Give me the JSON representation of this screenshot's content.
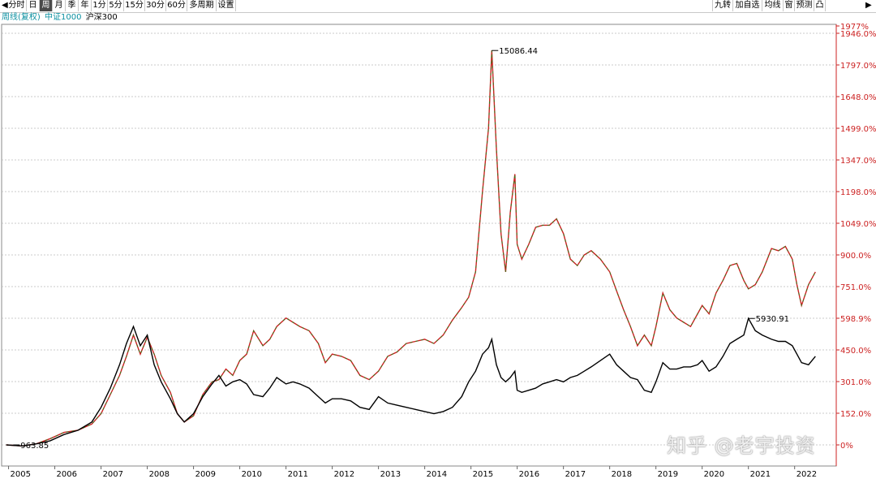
{
  "toolbar": {
    "left": [
      {
        "label": "分时",
        "w": 0
      },
      {
        "label": "日"
      },
      {
        "label": "周",
        "active": true
      },
      {
        "label": "月"
      },
      {
        "label": "季"
      },
      {
        "label": "年"
      },
      {
        "label": "1分"
      },
      {
        "label": "5分"
      },
      {
        "label": "15分"
      },
      {
        "label": "30分"
      },
      {
        "label": "60分"
      },
      {
        "label": "多周期"
      },
      {
        "label": "设置"
      }
    ],
    "right": [
      {
        "label": "九转"
      },
      {
        "label": "加自选"
      },
      {
        "label": "均线"
      },
      {
        "label": "窗"
      },
      {
        "label": "预测"
      },
      {
        "label": "凸"
      }
    ]
  },
  "legend": [
    "周线(复权)",
    "中证1000",
    "沪深300"
  ],
  "watermark": "知乎 @老宇投资",
  "chart_data": {
    "type": "line",
    "x_ticks": [
      "2005",
      "2006",
      "2007",
      "2008",
      "2009",
      "2010",
      "2011",
      "2012",
      "2013",
      "2014",
      "2015",
      "2016",
      "2017",
      "2018",
      "2019",
      "2020",
      "2021",
      "2022"
    ],
    "y_ticks": [
      "1977%",
      "1946.0%",
      "1797.0%",
      "1648.0%",
      "1499.0%",
      "1347.0%",
      "1198.0%",
      "1049.0%",
      "900.0%",
      "751.0%",
      "598.9%",
      "450.0%",
      "301.0%",
      "152.0%",
      "0%"
    ],
    "y_unit": "percent",
    "ylim": [
      0,
      1977
    ],
    "annotations": [
      {
        "text": "15086.44",
        "x": 2015.45,
        "y": 1865
      },
      {
        "text": "5930.91",
        "x": 2021.0,
        "y": 598
      },
      {
        "text": "963.85",
        "x": 2005.1,
        "y": 0
      }
    ],
    "series": [
      {
        "name": "中证1000",
        "color": "#cc2222",
        "points": [
          [
            2004.95,
            0
          ],
          [
            2005.3,
            -5
          ],
          [
            2005.6,
            5
          ],
          [
            2005.9,
            30
          ],
          [
            2006.2,
            60
          ],
          [
            2006.5,
            70
          ],
          [
            2006.8,
            100
          ],
          [
            2007.0,
            150
          ],
          [
            2007.2,
            240
          ],
          [
            2007.4,
            330
          ],
          [
            2007.55,
            420
          ],
          [
            2007.7,
            520
          ],
          [
            2007.85,
            430
          ],
          [
            2008.0,
            510
          ],
          [
            2008.15,
            430
          ],
          [
            2008.3,
            330
          ],
          [
            2008.5,
            250
          ],
          [
            2008.65,
            150
          ],
          [
            2008.8,
            110
          ],
          [
            2009.0,
            140
          ],
          [
            2009.2,
            240
          ],
          [
            2009.4,
            300
          ],
          [
            2009.55,
            310
          ],
          [
            2009.7,
            360
          ],
          [
            2009.85,
            330
          ],
          [
            2010.0,
            400
          ],
          [
            2010.15,
            430
          ],
          [
            2010.3,
            540
          ],
          [
            2010.5,
            470
          ],
          [
            2010.65,
            500
          ],
          [
            2010.8,
            560
          ],
          [
            2011.0,
            600
          ],
          [
            2011.15,
            580
          ],
          [
            2011.3,
            560
          ],
          [
            2011.5,
            540
          ],
          [
            2011.7,
            480
          ],
          [
            2011.85,
            390
          ],
          [
            2012.0,
            430
          ],
          [
            2012.2,
            420
          ],
          [
            2012.4,
            400
          ],
          [
            2012.6,
            330
          ],
          [
            2012.8,
            310
          ],
          [
            2013.0,
            350
          ],
          [
            2013.2,
            420
          ],
          [
            2013.4,
            440
          ],
          [
            2013.6,
            480
          ],
          [
            2013.8,
            490
          ],
          [
            2014.0,
            500
          ],
          [
            2014.2,
            480
          ],
          [
            2014.4,
            520
          ],
          [
            2014.6,
            590
          ],
          [
            2014.8,
            650
          ],
          [
            2014.95,
            700
          ],
          [
            2015.1,
            820
          ],
          [
            2015.25,
            1200
          ],
          [
            2015.38,
            1500
          ],
          [
            2015.45,
            1865
          ],
          [
            2015.55,
            1400
          ],
          [
            2015.65,
            1000
          ],
          [
            2015.75,
            820
          ],
          [
            2015.85,
            1100
          ],
          [
            2015.95,
            1280
          ],
          [
            2016.0,
            950
          ],
          [
            2016.1,
            880
          ],
          [
            2016.25,
            950
          ],
          [
            2016.4,
            1030
          ],
          [
            2016.55,
            1040
          ],
          [
            2016.7,
            1040
          ],
          [
            2016.85,
            1070
          ],
          [
            2017.0,
            1000
          ],
          [
            2017.15,
            880
          ],
          [
            2017.3,
            850
          ],
          [
            2017.45,
            900
          ],
          [
            2017.6,
            920
          ],
          [
            2017.8,
            880
          ],
          [
            2018.0,
            820
          ],
          [
            2018.15,
            730
          ],
          [
            2018.3,
            640
          ],
          [
            2018.45,
            560
          ],
          [
            2018.6,
            470
          ],
          [
            2018.75,
            520
          ],
          [
            2018.9,
            470
          ],
          [
            2019.0,
            560
          ],
          [
            2019.15,
            720
          ],
          [
            2019.3,
            640
          ],
          [
            2019.45,
            600
          ],
          [
            2019.6,
            580
          ],
          [
            2019.75,
            560
          ],
          [
            2019.9,
            620
          ],
          [
            2020.0,
            660
          ],
          [
            2020.15,
            620
          ],
          [
            2020.3,
            720
          ],
          [
            2020.45,
            780
          ],
          [
            2020.6,
            850
          ],
          [
            2020.75,
            860
          ],
          [
            2020.9,
            780
          ],
          [
            2021.0,
            740
          ],
          [
            2021.15,
            760
          ],
          [
            2021.3,
            820
          ],
          [
            2021.5,
            930
          ],
          [
            2021.65,
            920
          ],
          [
            2021.8,
            940
          ],
          [
            2021.95,
            880
          ],
          [
            2022.05,
            760
          ],
          [
            2022.15,
            660
          ],
          [
            2022.3,
            760
          ],
          [
            2022.45,
            820
          ]
        ]
      },
      {
        "name": "沪深300",
        "color": "#000000",
        "points": [
          [
            2004.95,
            0
          ],
          [
            2005.3,
            -5
          ],
          [
            2005.6,
            5
          ],
          [
            2005.9,
            20
          ],
          [
            2006.2,
            50
          ],
          [
            2006.5,
            70
          ],
          [
            2006.8,
            110
          ],
          [
            2007.0,
            180
          ],
          [
            2007.2,
            270
          ],
          [
            2007.4,
            380
          ],
          [
            2007.55,
            480
          ],
          [
            2007.7,
            560
          ],
          [
            2007.85,
            470
          ],
          [
            2008.0,
            520
          ],
          [
            2008.15,
            380
          ],
          [
            2008.3,
            300
          ],
          [
            2008.5,
            220
          ],
          [
            2008.65,
            150
          ],
          [
            2008.8,
            110
          ],
          [
            2009.0,
            150
          ],
          [
            2009.2,
            230
          ],
          [
            2009.4,
            290
          ],
          [
            2009.55,
            330
          ],
          [
            2009.7,
            280
          ],
          [
            2009.85,
            300
          ],
          [
            2010.0,
            310
          ],
          [
            2010.15,
            290
          ],
          [
            2010.3,
            240
          ],
          [
            2010.5,
            230
          ],
          [
            2010.65,
            270
          ],
          [
            2010.8,
            320
          ],
          [
            2011.0,
            290
          ],
          [
            2011.15,
            300
          ],
          [
            2011.3,
            290
          ],
          [
            2011.5,
            270
          ],
          [
            2011.7,
            230
          ],
          [
            2011.85,
            200
          ],
          [
            2012.0,
            220
          ],
          [
            2012.2,
            220
          ],
          [
            2012.4,
            210
          ],
          [
            2012.6,
            180
          ],
          [
            2012.8,
            170
          ],
          [
            2013.0,
            230
          ],
          [
            2013.2,
            200
          ],
          [
            2013.4,
            190
          ],
          [
            2013.6,
            180
          ],
          [
            2013.8,
            170
          ],
          [
            2014.0,
            160
          ],
          [
            2014.2,
            150
          ],
          [
            2014.4,
            160
          ],
          [
            2014.6,
            180
          ],
          [
            2014.8,
            230
          ],
          [
            2014.95,
            300
          ],
          [
            2015.1,
            350
          ],
          [
            2015.25,
            430
          ],
          [
            2015.38,
            460
          ],
          [
            2015.45,
            500
          ],
          [
            2015.55,
            380
          ],
          [
            2015.65,
            320
          ],
          [
            2015.75,
            300
          ],
          [
            2015.85,
            320
          ],
          [
            2015.95,
            350
          ],
          [
            2016.0,
            260
          ],
          [
            2016.1,
            250
          ],
          [
            2016.25,
            260
          ],
          [
            2016.4,
            270
          ],
          [
            2016.55,
            290
          ],
          [
            2016.7,
            300
          ],
          [
            2016.85,
            310
          ],
          [
            2017.0,
            300
          ],
          [
            2017.15,
            320
          ],
          [
            2017.3,
            330
          ],
          [
            2017.45,
            350
          ],
          [
            2017.6,
            370
          ],
          [
            2017.8,
            400
          ],
          [
            2018.0,
            430
          ],
          [
            2018.15,
            380
          ],
          [
            2018.3,
            350
          ],
          [
            2018.45,
            320
          ],
          [
            2018.6,
            310
          ],
          [
            2018.75,
            260
          ],
          [
            2018.9,
            250
          ],
          [
            2019.0,
            300
          ],
          [
            2019.15,
            390
          ],
          [
            2019.3,
            360
          ],
          [
            2019.45,
            360
          ],
          [
            2019.6,
            370
          ],
          [
            2019.75,
            370
          ],
          [
            2019.9,
            380
          ],
          [
            2020.0,
            400
          ],
          [
            2020.15,
            350
          ],
          [
            2020.3,
            370
          ],
          [
            2020.45,
            420
          ],
          [
            2020.6,
            480
          ],
          [
            2020.75,
            500
          ],
          [
            2020.9,
            520
          ],
          [
            2021.0,
            598
          ],
          [
            2021.15,
            540
          ],
          [
            2021.3,
            520
          ],
          [
            2021.5,
            500
          ],
          [
            2021.65,
            490
          ],
          [
            2021.8,
            490
          ],
          [
            2021.95,
            470
          ],
          [
            2022.05,
            430
          ],
          [
            2022.15,
            390
          ],
          [
            2022.3,
            380
          ],
          [
            2022.45,
            420
          ]
        ]
      }
    ]
  }
}
